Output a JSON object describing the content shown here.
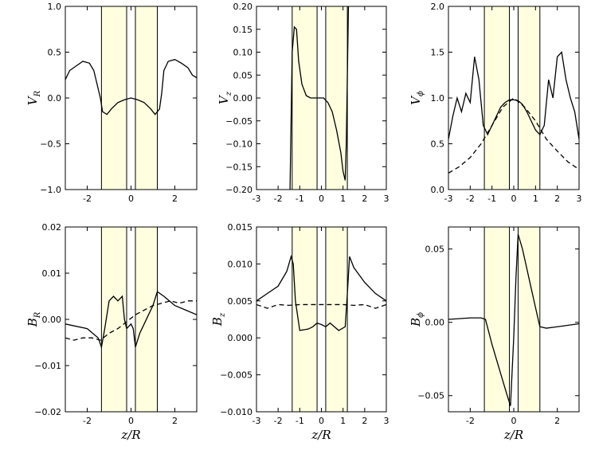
{
  "chart_data": [
    {
      "type": "line",
      "ylabel": "V",
      "ylabel_sub": "R",
      "xlim": [
        -3,
        3
      ],
      "xticks": [
        -2,
        0,
        2
      ],
      "ylim": [
        -1,
        1
      ],
      "yticks": [
        {
          "value": -1,
          "label": "−1.0"
        },
        {
          "value": -0.5,
          "label": "−0.5"
        },
        {
          "value": 0,
          "label": "0.0"
        },
        {
          "value": 0.5,
          "label": "0.5"
        },
        {
          "value": 1,
          "label": "1.0"
        }
      ],
      "bands": [
        [
          -1.35,
          -0.2
        ],
        [
          0.2,
          1.2
        ]
      ],
      "band_color": "#ffffe0",
      "series": [
        {
          "color": "#000000",
          "dashed": false,
          "x": [
            -3,
            -2.8,
            -2.5,
            -2.2,
            -1.9,
            -1.7,
            -1.5,
            -1.4,
            -1.3,
            -1.1,
            -0.9,
            -0.6,
            -0.3,
            0,
            0.3,
            0.6,
            0.9,
            1.1,
            1.3,
            1.4,
            1.5,
            1.7,
            2,
            2.3,
            2.6,
            2.8,
            3
          ],
          "values": [
            0.2,
            0.3,
            0.35,
            0.4,
            0.38,
            0.3,
            0.1,
            0,
            -0.15,
            -0.18,
            -0.12,
            -0.05,
            -0.02,
            0,
            -0.02,
            -0.05,
            -0.12,
            -0.18,
            -0.12,
            0.05,
            0.3,
            0.4,
            0.42,
            0.38,
            0.33,
            0.25,
            0.22
          ]
        }
      ]
    },
    {
      "type": "line",
      "ylabel": "V",
      "ylabel_sub": "z",
      "xlim": [
        -3,
        3
      ],
      "xticks": [
        -3,
        -2,
        -1,
        0,
        1,
        2,
        3
      ],
      "ylim": [
        -0.2,
        0.2
      ],
      "yticks": [
        {
          "value": -0.2,
          "label": "−0.20"
        },
        {
          "value": -0.15,
          "label": "−0.15"
        },
        {
          "value": -0.1,
          "label": "−0.10"
        },
        {
          "value": -0.05,
          "label": "−0.05"
        },
        {
          "value": 0,
          "label": "0.00"
        },
        {
          "value": 0.05,
          "label": "0.05"
        },
        {
          "value": 0.1,
          "label": "0.10"
        },
        {
          "value": 0.15,
          "label": "0.15"
        },
        {
          "value": 0.2,
          "label": "0.20"
        }
      ],
      "bands": [
        [
          -1.35,
          -0.2
        ],
        [
          0.2,
          1.2
        ]
      ],
      "band_color": "#ffffe0",
      "series": [
        {
          "color": "#000000",
          "dashed": false,
          "x": [
            -1.45,
            -1.35,
            -1.25,
            -1.15,
            -1.05,
            -0.9,
            -0.7,
            -0.5,
            -0.3,
            -0.1,
            0.1,
            0.3,
            0.5,
            0.7,
            0.9,
            1,
            1.1,
            1.15,
            1.25
          ],
          "values": [
            -0.2,
            0.1,
            0.155,
            0.15,
            0.08,
            0.03,
            0.005,
            0,
            0,
            0,
            0,
            -0.01,
            -0.03,
            -0.07,
            -0.12,
            -0.16,
            -0.18,
            -0.1,
            0.2
          ]
        }
      ]
    },
    {
      "type": "line",
      "ylabel": "V",
      "ylabel_sub": "ϕ",
      "xlim": [
        -3,
        3
      ],
      "xticks": [
        -3,
        -2,
        -1,
        0,
        1,
        2,
        3
      ],
      "ylim": [
        0,
        2
      ],
      "yticks": [
        {
          "value": 0,
          "label": "0.0"
        },
        {
          "value": 0.5,
          "label": "0.5"
        },
        {
          "value": 1,
          "label": "1.0"
        },
        {
          "value": 1.5,
          "label": "1.5"
        },
        {
          "value": 2,
          "label": "2.0"
        }
      ],
      "bands": [
        [
          -1.35,
          -0.2
        ],
        [
          0.2,
          1.2
        ]
      ],
      "band_color": "#ffffe0",
      "series": [
        {
          "color": "#000000",
          "dashed": false,
          "x": [
            -3,
            -2.8,
            -2.6,
            -2.4,
            -2.2,
            -2,
            -1.8,
            -1.6,
            -1.4,
            -1.2,
            -1,
            -0.8,
            -0.6,
            -0.4,
            -0.2,
            0,
            0.2,
            0.4,
            0.6,
            0.8,
            1,
            1.2,
            1.4,
            1.6,
            1.8,
            2,
            2.2,
            2.4,
            2.6,
            2.8,
            3
          ],
          "values": [
            0.55,
            0.8,
            1,
            0.85,
            1.05,
            0.95,
            1.45,
            1.2,
            0.7,
            0.6,
            0.7,
            0.8,
            0.9,
            0.95,
            0.98,
            0.98,
            0.97,
            0.93,
            0.85,
            0.75,
            0.65,
            0.6,
            0.7,
            1.2,
            1,
            1.45,
            1.5,
            1.2,
            1,
            0.85,
            0.55
          ]
        },
        {
          "color": "#000000",
          "dashed": true,
          "x": [
            -3,
            -2.5,
            -2,
            -1.5,
            -1,
            -0.5,
            0,
            0.5,
            1,
            1.5,
            2,
            2.5,
            3
          ],
          "values": [
            0.18,
            0.25,
            0.35,
            0.5,
            0.7,
            0.9,
            1,
            0.9,
            0.75,
            0.55,
            0.42,
            0.3,
            0.22
          ]
        }
      ]
    },
    {
      "type": "line",
      "ylabel": "B",
      "ylabel_sub": "R",
      "xlabel": "z/R",
      "xlim": [
        -3,
        3
      ],
      "xticks": [
        -2,
        0,
        2
      ],
      "ylim": [
        -0.02,
        0.02
      ],
      "yticks": [
        {
          "value": -0.02,
          "label": "−0.02"
        },
        {
          "value": -0.01,
          "label": "−0.01"
        },
        {
          "value": 0,
          "label": "0.00"
        },
        {
          "value": 0.01,
          "label": "0.01"
        },
        {
          "value": 0.02,
          "label": "0.02"
        }
      ],
      "bands": [
        [
          -1.35,
          -0.2
        ],
        [
          0.2,
          1.2
        ]
      ],
      "band_color": "#ffffe0",
      "series": [
        {
          "color": "#000000",
          "dashed": false,
          "x": [
            -3,
            -2,
            -1.5,
            -1.35,
            -1.2,
            -1,
            -0.8,
            -0.6,
            -0.4,
            -0.3,
            -0.2,
            0,
            0.1,
            0.2,
            0.4,
            0.6,
            0.8,
            1,
            1.2,
            1.5,
            2,
            2.5,
            3
          ],
          "values": [
            -0.001,
            -0.002,
            -0.004,
            -0.006,
            -0.002,
            0.004,
            0.005,
            0.004,
            0.005,
            0,
            -0.002,
            -0.001,
            -0.002,
            -0.006,
            -0.003,
            -0.001,
            0.001,
            0.003,
            0.006,
            0.005,
            0.003,
            0.002,
            0.001
          ]
        },
        {
          "color": "#000000",
          "dashed": true,
          "x": [
            -3,
            -2.6,
            -2.2,
            -1.8,
            -1.4,
            -1,
            -0.6,
            -0.2,
            0.2,
            0.6,
            1,
            1.4,
            1.8,
            2.2,
            2.6,
            3
          ],
          "values": [
            -0.004,
            -0.0045,
            -0.004,
            -0.004,
            -0.0045,
            -0.003,
            -0.002,
            -0.0005,
            0.001,
            0.002,
            0.003,
            0.0035,
            0.004,
            0.0035,
            0.004,
            0.004
          ]
        }
      ]
    },
    {
      "type": "line",
      "ylabel": "B",
      "ylabel_sub": "z",
      "xlabel": "z/R",
      "xlim": [
        -3,
        3
      ],
      "xticks": [
        -3,
        -2,
        -1,
        0,
        1,
        2,
        3
      ],
      "ylim": [
        -0.01,
        0.015
      ],
      "yticks": [
        {
          "value": -0.01,
          "label": "−0.010"
        },
        {
          "value": -0.005,
          "label": "−0.005"
        },
        {
          "value": 0,
          "label": "0.000"
        },
        {
          "value": 0.005,
          "label": "0.005"
        },
        {
          "value": 0.01,
          "label": "0.010"
        },
        {
          "value": 0.015,
          "label": "0.015"
        }
      ],
      "bands": [
        [
          -1.35,
          -0.2
        ],
        [
          0.2,
          1.2
        ]
      ],
      "band_color": "#ffffe0",
      "series": [
        {
          "color": "#000000",
          "dashed": false,
          "x": [
            -3,
            -2.5,
            -2,
            -1.6,
            -1.4,
            -1.3,
            -1.2,
            -1,
            -0.6,
            -0.4,
            -0.2,
            0,
            0.2,
            0.4,
            0.8,
            1.1,
            1.2,
            1.3,
            1.5,
            2,
            2.5,
            3
          ],
          "values": [
            0.005,
            0.006,
            0.007,
            0.009,
            0.011,
            0.01,
            0.005,
            0.001,
            0.0012,
            0.0015,
            0.002,
            0.0018,
            0.0015,
            0.002,
            0.001,
            0.0015,
            0.006,
            0.011,
            0.0095,
            0.0075,
            0.006,
            0.005
          ]
        },
        {
          "color": "#000000",
          "dashed": true,
          "x": [
            -3,
            -2.5,
            -2,
            -1.5,
            -1,
            -0.5,
            0,
            0.5,
            1,
            1.5,
            2,
            2.5,
            3
          ],
          "values": [
            0.0045,
            0.004,
            0.0045,
            0.0044,
            0.0045,
            0.0045,
            0.0045,
            0.0045,
            0.0045,
            0.0044,
            0.0045,
            0.004,
            0.0045
          ]
        }
      ]
    },
    {
      "type": "line",
      "ylabel": "B",
      "ylabel_sub": "ϕ",
      "xlabel": "z/R",
      "xlim": [
        -3,
        3
      ],
      "xticks": [
        -2,
        0,
        2
      ],
      "ylim": [
        -0.061,
        0.065
      ],
      "yticks": [
        {
          "value": -0.05,
          "label": "−0.05"
        },
        {
          "value": 0,
          "label": "0.00"
        },
        {
          "value": 0.05,
          "label": "0.05"
        }
      ],
      "bands": [
        [
          -1.35,
          -0.2
        ],
        [
          0.2,
          1.2
        ]
      ],
      "band_color": "#ffffe0",
      "series": [
        {
          "color": "#000000",
          "dashed": false,
          "x": [
            -3,
            -2,
            -1.5,
            -1.3,
            -1,
            -0.6,
            -0.3,
            -0.15,
            0,
            0.1,
            0.2,
            0.4,
            0.7,
            1,
            1.2,
            1.5,
            2,
            3
          ],
          "values": [
            0.002,
            0.003,
            0.003,
            0.002,
            -0.015,
            -0.035,
            -0.05,
            -0.057,
            -0.01,
            0.03,
            0.06,
            0.05,
            0.03,
            0.01,
            -0.003,
            -0.004,
            -0.003,
            -0.001
          ]
        }
      ]
    }
  ]
}
